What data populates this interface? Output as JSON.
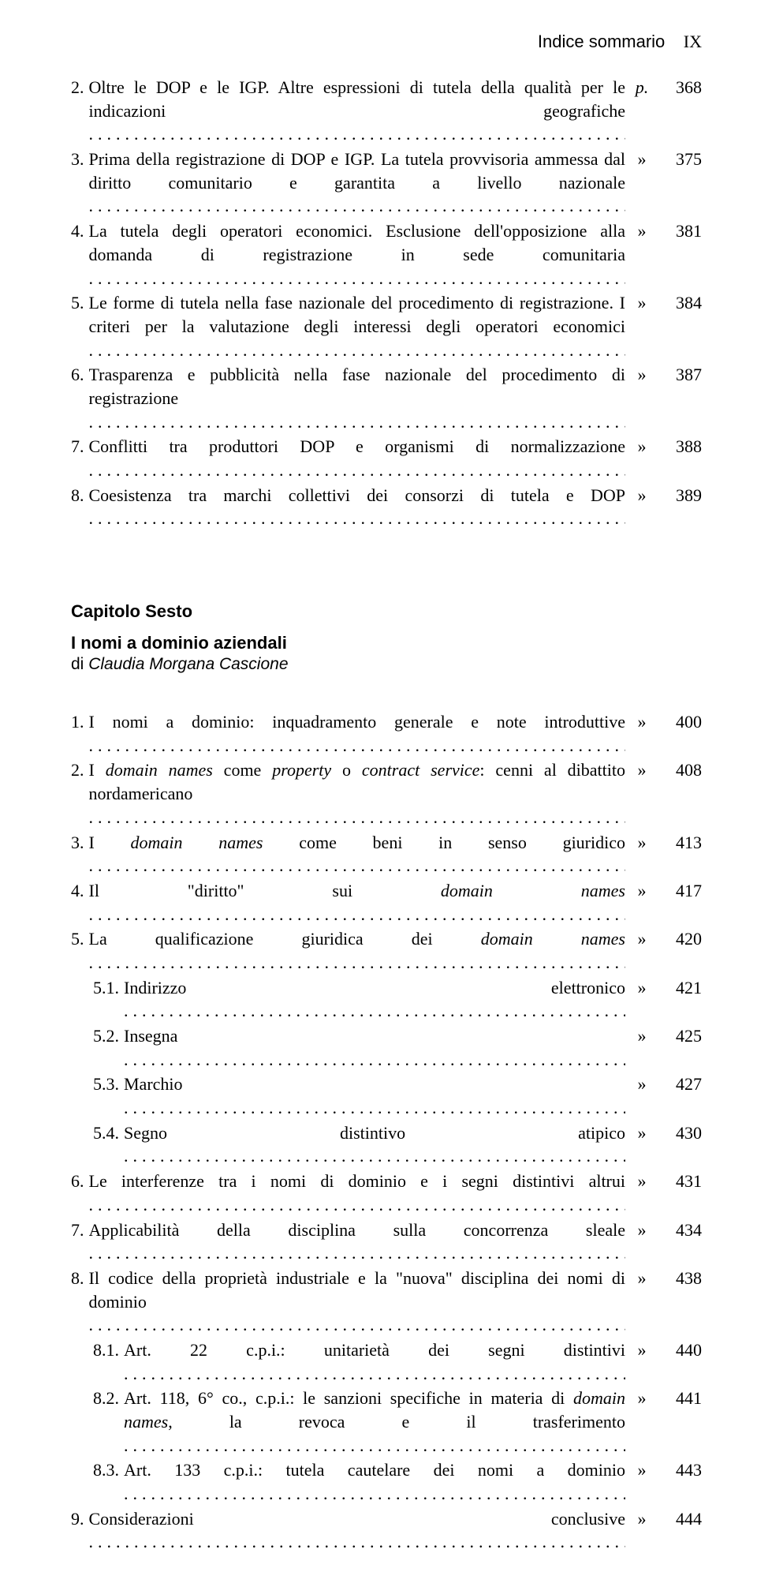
{
  "colors": {
    "text": "#000000",
    "background": "#ffffff"
  },
  "typography": {
    "body_family": "Times New Roman",
    "heading_family": "Arial",
    "body_size_pt": 16,
    "line_height": 1.35
  },
  "running_head": {
    "title": "Indice sommario",
    "roman": "IX"
  },
  "section1": {
    "entries": [
      {
        "num": "2.",
        "text_segments": [
          {
            "t": "Oltre le DOP e le IGP. Altre espressioni di tutela della qualità per le indicazioni geografiche",
            "italic": false
          }
        ],
        "sep": "p.",
        "sep_style": "italic",
        "page": "368",
        "indent": 0
      },
      {
        "num": "3.",
        "text_segments": [
          {
            "t": "Prima della registrazione di DOP e IGP. La tutela provvisoria ammessa dal diritto comunitario e garantita a livello nazionale",
            "italic": false
          }
        ],
        "sep": "»",
        "page": "375",
        "indent": 0
      },
      {
        "num": "4.",
        "text_segments": [
          {
            "t": "La tutela degli operatori economici. Esclusione dell'opposizione alla domanda di registrazione in sede comunitaria",
            "italic": false
          }
        ],
        "sep": "»",
        "page": "381",
        "indent": 0
      },
      {
        "num": "5.",
        "text_segments": [
          {
            "t": "Le forme di tutela nella fase nazionale del procedimento di registrazione. I criteri per la valutazione degli interessi degli operatori economici",
            "italic": false
          }
        ],
        "sep": "»",
        "page": "384",
        "indent": 0
      },
      {
        "num": "6.",
        "text_segments": [
          {
            "t": "Trasparenza e pubblicità nella fase nazionale del procedimento di registrazione",
            "italic": false
          }
        ],
        "sep": "»",
        "page": "387",
        "indent": 0
      },
      {
        "num": "7.",
        "text_segments": [
          {
            "t": "Conflitti tra produttori DOP e organismi di normalizzazione",
            "italic": false
          }
        ],
        "sep": "»",
        "page": "388",
        "indent": 0
      },
      {
        "num": "8.",
        "text_segments": [
          {
            "t": "Coesistenza tra marchi collettivi dei consorzi di tutela e DOP",
            "italic": false
          }
        ],
        "sep": "»",
        "page": "389",
        "indent": 0
      }
    ]
  },
  "chapter": {
    "label": "Capitolo Sesto",
    "title": "I nomi a dominio aziendali",
    "author_prefix": "di ",
    "author_name": "Claudia Morgana Cascione"
  },
  "section2": {
    "entries": [
      {
        "num": "1.",
        "text_segments": [
          {
            "t": "I nomi a dominio: inquadramento generale e note introduttive",
            "italic": false
          }
        ],
        "sep": "»",
        "page": "400",
        "indent": 0
      },
      {
        "num": "2.",
        "text_segments": [
          {
            "t": "I ",
            "italic": false
          },
          {
            "t": "domain names",
            "italic": true
          },
          {
            "t": " come ",
            "italic": false
          },
          {
            "t": "property",
            "italic": true
          },
          {
            "t": " o ",
            "italic": false
          },
          {
            "t": "contract service",
            "italic": true
          },
          {
            "t": ": cenni al dibattito nordamericano",
            "italic": false
          }
        ],
        "sep": "»",
        "page": "408",
        "indent": 0
      },
      {
        "num": "3.",
        "text_segments": [
          {
            "t": "I ",
            "italic": false
          },
          {
            "t": "domain names",
            "italic": true
          },
          {
            "t": " come beni in senso giuridico",
            "italic": false
          }
        ],
        "sep": "»",
        "page": "413",
        "indent": 0
      },
      {
        "num": "4.",
        "text_segments": [
          {
            "t": "Il \"diritto\" sui ",
            "italic": false
          },
          {
            "t": "domain names",
            "italic": true
          }
        ],
        "sep": "»",
        "page": "417",
        "indent": 0
      },
      {
        "num": "5.",
        "text_segments": [
          {
            "t": "La qualificazione giuridica dei ",
            "italic": false
          },
          {
            "t": "domain names",
            "italic": true
          }
        ],
        "sep": "»",
        "page": "420",
        "indent": 0
      },
      {
        "num": "5.1.",
        "text_segments": [
          {
            "t": "Indirizzo elettronico",
            "italic": false
          }
        ],
        "sep": "»",
        "page": "421",
        "indent": 1
      },
      {
        "num": "5.2.",
        "text_segments": [
          {
            "t": "Insegna",
            "italic": false
          }
        ],
        "sep": "»",
        "page": "425",
        "indent": 1
      },
      {
        "num": "5.3.",
        "text_segments": [
          {
            "t": "Marchio",
            "italic": false
          }
        ],
        "sep": "»",
        "page": "427",
        "indent": 1
      },
      {
        "num": "5.4.",
        "text_segments": [
          {
            "t": "Segno distintivo atipico",
            "italic": false
          }
        ],
        "sep": "»",
        "page": "430",
        "indent": 1
      },
      {
        "num": "6.",
        "text_segments": [
          {
            "t": "Le interferenze tra i nomi di dominio e i segni distintivi altrui",
            "italic": false
          }
        ],
        "sep": "»",
        "page": "431",
        "indent": 0
      },
      {
        "num": "7.",
        "text_segments": [
          {
            "t": "Applicabilità della disciplina sulla concorrenza sleale",
            "italic": false
          }
        ],
        "sep": "»",
        "page": "434",
        "indent": 0
      },
      {
        "num": "8.",
        "text_segments": [
          {
            "t": "Il codice della proprietà industriale e la \"nuova\" disciplina dei nomi di dominio",
            "italic": false
          }
        ],
        "sep": "»",
        "page": "438",
        "indent": 0
      },
      {
        "num": "8.1.",
        "text_segments": [
          {
            "t": "Art. 22 c.p.i.: unitarietà dei segni distintivi",
            "italic": false
          }
        ],
        "sep": "»",
        "page": "440",
        "indent": 1
      },
      {
        "num": "8.2.",
        "text_segments": [
          {
            "t": "Art. 118, 6° co., c.p.i.: le sanzioni specifiche in materia di ",
            "italic": false
          },
          {
            "t": "domain names",
            "italic": true
          },
          {
            "t": ", la revoca e il trasferimento",
            "italic": false
          }
        ],
        "sep": "»",
        "page": "441",
        "indent": 1
      },
      {
        "num": "8.3.",
        "text_segments": [
          {
            "t": "Art. 133 c.p.i.: tutela cautelare dei nomi a dominio",
            "italic": false
          }
        ],
        "sep": "»",
        "page": "443",
        "indent": 1
      },
      {
        "num": "9.",
        "text_segments": [
          {
            "t": "Considerazioni conclusive",
            "italic": false
          }
        ],
        "sep": "»",
        "page": "444",
        "indent": 0
      }
    ]
  }
}
